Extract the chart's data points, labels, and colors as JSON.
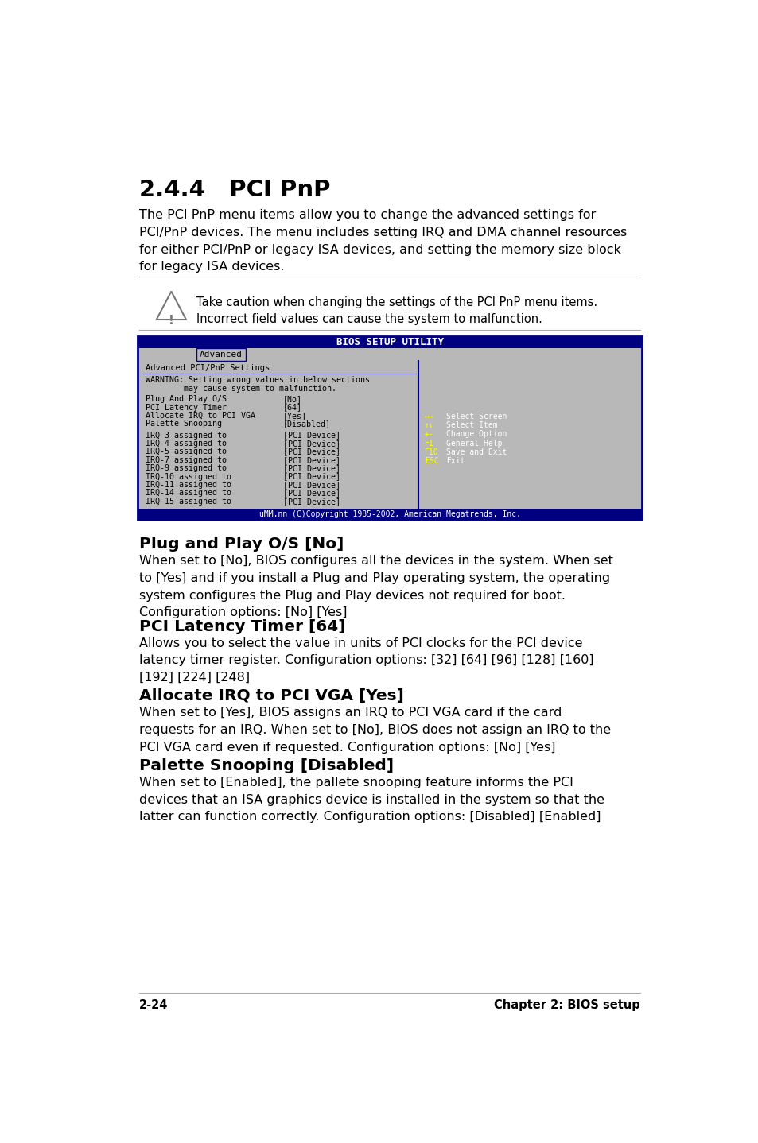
{
  "bg_color": "#ffffff",
  "section_title": "2.4.4   PCI PnP",
  "intro_text": "The PCI PnP menu items allow you to change the advanced settings for\nPCI/PnP devices. The menu includes setting IRQ and DMA channel resources\nfor either PCI/PnP or legacy ISA devices, and setting the memory size block\nfor legacy ISA devices.",
  "caution_text": "Take caution when changing the settings of the PCI PnP menu items.\nIncorrect field values can cause the system to malfunction.",
  "bios_title": "BIOS SETUP UTILITY",
  "bios_tab": "Advanced",
  "bios_section_header": "Advanced PCI/PnP Settings",
  "bios_warning_line1": "WARNING: Setting wrong values in below sections",
  "bios_warning_line2": "        may cause system to malfunction.",
  "bios_items_left": [
    "Plug And Play O/S",
    "PCI Latency Timer",
    "Allocate IRQ to PCI VGA",
    "Palette Snooping"
  ],
  "bios_items_right": [
    "[No]",
    "[64]",
    "[Yes]",
    "[Disabled]"
  ],
  "bios_irq_left": [
    "IRQ-3 assigned to",
    "IRQ-4 assigned to",
    "IRQ-5 assigned to",
    "IRQ-7 assigned to",
    "IRQ-9 assigned to",
    "IRQ-10 assigned to",
    "IRQ-11 assigned to",
    "IRQ-14 assigned to",
    "IRQ-15 assigned to"
  ],
  "bios_irq_right": [
    "[PCI Device]",
    "[PCI Device]",
    "[PCI Device]",
    "[PCI Device]",
    "[PCI Device]",
    "[PCI Device]",
    "[PCI Device]",
    "[PCI Device]",
    "[PCI Device]"
  ],
  "bios_nav_keys": [
    "↔↔",
    "↑↓",
    "+-",
    "F1",
    "F10",
    "ESC"
  ],
  "bios_nav_descs": [
    "Select Screen",
    "Select Item",
    "Change Option",
    "General Help",
    "Save and Exit",
    "Exit"
  ],
  "bios_footer": "uMM.nn (C)Copyright 1985-2002, American Megatrends, Inc.",
  "subsections": [
    {
      "title": "Plug and Play O/S [No]",
      "body": "When set to [No], BIOS configures all the devices in the system. When set\nto [Yes] and if you install a Plug and Play operating system, the operating\nsystem configures the Plug and Play devices not required for boot.\nConfiguration options: [No] [Yes]"
    },
    {
      "title": "PCI Latency Timer [64]",
      "body": "Allows you to select the value in units of PCI clocks for the PCI device\nlatency timer register. Configuration options: [32] [64] [96] [128] [160]\n[192] [224] [248]"
    },
    {
      "title": "Allocate IRQ to PCI VGA [Yes]",
      "body": "When set to [Yes], BIOS assigns an IRQ to PCI VGA card if the card\nrequests for an IRQ. When set to [No], BIOS does not assign an IRQ to the\nPCI VGA card even if requested. Configuration options: [No] [Yes]"
    },
    {
      "title": "Palette Snooping [Disabled]",
      "body": "When set to [Enabled], the pallete snooping feature informs the PCI\ndevices that an ISA graphics device is installed in the system so that the\nlatter can function correctly. Configuration options: [Disabled] [Enabled]"
    }
  ],
  "footer_left": "2-24",
  "footer_right": "Chapter 2: BIOS setup",
  "bios_dark_blue": "#000080",
  "bios_bg_gray": "#b8b8b8",
  "bios_nav_key_color": "#ffff00",
  "bios_nav_desc_color": "#ffffff"
}
